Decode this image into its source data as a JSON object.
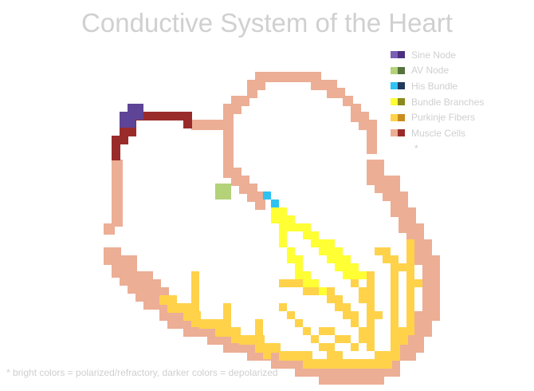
{
  "title": "Conductive System of the Heart",
  "legend": [
    {
      "label": "Sine Node",
      "bright": "#7a5fb5",
      "dark": "#4b2f82"
    },
    {
      "label": "AV Node",
      "bright": "#b3d27a",
      "dark": "#56723d"
    },
    {
      "label": "His Bundle",
      "bright": "#2ec2f2",
      "dark": "#1f3a5c"
    },
    {
      "label": "Bundle Branches",
      "bright": "#ffff33",
      "dark": "#8a8a1f"
    },
    {
      "label": "Purkinje Fibers",
      "bright": "#ffd24a",
      "dark": "#c98c1e"
    },
    {
      "label": "Muscle Cells",
      "bright": "#ecae95",
      "dark": "#9a2b2b"
    }
  ],
  "legend_star": "*",
  "footnote": "* bright colors = polarized/refractory, darker colors = depolarized",
  "colors": {
    "sine_node": "#5e4496",
    "av_node": "#b3d27a",
    "his_bundle": "#2ec2f2",
    "bundle_branches": "#ffff33",
    "purkinje": "#ffd24a",
    "muscle": "#ecae95",
    "muscle_depolarized": "#9a2b2b"
  }
}
